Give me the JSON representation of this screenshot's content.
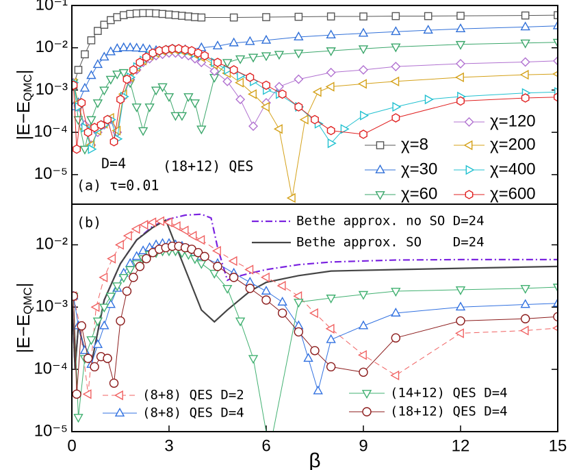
{
  "chart_data": [
    {
      "type": "line",
      "ylog": true,
      "xlim": [
        0,
        15
      ],
      "ylim": [
        2e-06,
        0.1
      ],
      "yticks": [
        {
          "value": 1e-05,
          "label": "10⁻⁵"
        },
        {
          "value": 0.0001,
          "label": "10⁻⁴"
        },
        {
          "value": 0.001,
          "label": "10⁻³"
        },
        {
          "value": 0.01,
          "label": "10⁻²"
        },
        {
          "value": 0.1,
          "label": "10⁻¹"
        }
      ],
      "ylabel": [
        "|E−E",
        "QMC",
        "|"
      ],
      "annotations": [
        "D=4",
        "(18+12) QES",
        "(a) τ=0.01"
      ],
      "series": [
        {
          "name": "χ=8",
          "color": "#555555",
          "marker": "square",
          "dash": "solid",
          "x": [
            0.05,
            0.2,
            0.4,
            0.6,
            0.8,
            1.0,
            1.2,
            1.4,
            1.6,
            1.8,
            2.0,
            2.2,
            2.4,
            2.6,
            2.8,
            3.0,
            3.2,
            3.4,
            3.6,
            3.8,
            4.0,
            5,
            6,
            7,
            8,
            9,
            10,
            11,
            12,
            14,
            15
          ],
          "values": [
            0.0013,
            0.003,
            0.007,
            0.015,
            0.025,
            0.035,
            0.045,
            0.053,
            0.059,
            0.063,
            0.065,
            0.066,
            0.066,
            0.065,
            0.063,
            0.061,
            0.059,
            0.057,
            0.055,
            0.053,
            0.052,
            0.052,
            0.053,
            0.054,
            0.055,
            0.055,
            0.056,
            0.056,
            0.057,
            0.058,
            0.059
          ]
        },
        {
          "name": "χ=30",
          "color": "#2f6fd8",
          "marker": "triangle-up",
          "dash": "solid",
          "x": [
            0.05,
            0.2,
            0.4,
            0.6,
            0.8,
            1.0,
            1.2,
            1.4,
            1.6,
            1.8,
            2.0,
            2.2,
            2.4,
            2.6,
            3.0,
            3.5,
            4,
            4.5,
            5,
            5.5,
            6,
            7,
            8,
            9,
            10,
            11,
            12,
            14,
            15
          ],
          "values": [
            0.0004,
            0.0005,
            0.0011,
            0.0022,
            0.004,
            0.006,
            0.008,
            0.0095,
            0.01,
            0.01,
            0.0098,
            0.0095,
            0.009,
            0.0086,
            0.0085,
            0.009,
            0.01,
            0.011,
            0.013,
            0.014,
            0.015,
            0.018,
            0.02,
            0.022,
            0.024,
            0.026,
            0.028,
            0.031,
            0.033
          ]
        },
        {
          "name": "χ=60",
          "color": "#3aa66a",
          "marker": "triangle-down",
          "dash": "solid",
          "x": [
            0.05,
            0.2,
            0.4,
            0.6,
            0.8,
            1.0,
            1.2,
            1.4,
            1.6,
            1.8,
            2.0,
            2.2,
            2.4,
            2.6,
            2.8,
            3.0,
            3.2,
            3.4,
            3.6,
            3.8,
            4.0,
            4.4,
            4.8,
            5.2,
            5.6,
            6,
            6.4,
            7,
            8,
            9,
            10,
            12,
            14,
            15
          ],
          "values": [
            0.0015,
            0.0002,
            4e-05,
            0.0002,
            0.0005,
            0.001,
            0.0018,
            0.0024,
            0.0026,
            0.0015,
            0.0004,
            0.00011,
            0.0004,
            0.001,
            0.0012,
            0.0007,
            0.00025,
            0.00025,
            0.0007,
            0.0005,
            0.00012,
            0.002,
            0.0045,
            0.0055,
            0.006,
            0.0065,
            0.007,
            0.0075,
            0.0085,
            0.0095,
            0.0105,
            0.012,
            0.013,
            0.0135
          ]
        },
        {
          "name": "χ=120",
          "color": "#b070d0",
          "marker": "diamond",
          "dash": "solid",
          "x": [
            0.05,
            0.2,
            0.4,
            0.6,
            0.8,
            1.0,
            1.2,
            1.4,
            1.6,
            1.8,
            2.0,
            2.2,
            2.4,
            2.6,
            2.8,
            3.0,
            3.2,
            3.4,
            3.6,
            3.8,
            4.0,
            4.4,
            4.8,
            5.2,
            5.6,
            6.0,
            6.4,
            7.0,
            8.0,
            9.0,
            10,
            12,
            14,
            15
          ],
          "values": [
            0.0015,
            0.0004,
            0.00015,
            5e-05,
            0.0001,
            0.00015,
            0.0002,
            0.0001,
            0.0007,
            0.0018,
            0.003,
            0.0045,
            0.0055,
            0.0065,
            0.007,
            0.0075,
            0.0075,
            0.007,
            0.0065,
            0.0055,
            0.0045,
            0.0028,
            0.0016,
            0.0006,
            0.00014,
            0.0005,
            0.0012,
            0.0018,
            0.0026,
            0.003,
            0.0036,
            0.0042,
            0.0046,
            0.0049
          ]
        },
        {
          "name": "χ=200",
          "color": "#d4a017",
          "marker": "triangle-left",
          "dash": "solid",
          "x": [
            0.05,
            0.2,
            0.4,
            0.6,
            0.8,
            1.0,
            1.2,
            1.4,
            1.6,
            1.8,
            2.0,
            2.2,
            2.4,
            2.6,
            2.8,
            3.0,
            3.2,
            3.4,
            3.6,
            3.8,
            4.0,
            4.4,
            4.8,
            5.2,
            5.6,
            6.0,
            6.4,
            6.8,
            7.2,
            7.6,
            8,
            9,
            10,
            12,
            14,
            15
          ],
          "values": [
            0.0015,
            0.0005,
            0.00012,
            5e-05,
            0.00011,
            0.00016,
            0.00022,
            0.00011,
            0.0008,
            0.002,
            0.0035,
            0.005,
            0.0065,
            0.0075,
            0.0085,
            0.009,
            0.009,
            0.0085,
            0.008,
            0.007,
            0.006,
            0.004,
            0.0025,
            0.0015,
            0.0008,
            0.0004,
            0.00012,
            2.8e-06,
            0.0002,
            0.0009,
            0.0012,
            0.0014,
            0.0016,
            0.002,
            0.0023,
            0.0024
          ]
        },
        {
          "name": "χ=400",
          "color": "#20c0d0",
          "marker": "triangle-right",
          "dash": "solid",
          "x": [
            0.05,
            0.2,
            0.4,
            0.6,
            0.8,
            1.0,
            1.2,
            1.4,
            1.6,
            1.8,
            2.0,
            2.2,
            2.4,
            2.6,
            2.8,
            3.0,
            3.2,
            3.4,
            3.6,
            3.8,
            4.0,
            4.4,
            4.8,
            5.2,
            5.6,
            6.0,
            6.4,
            7.0,
            7.6,
            8.0,
            8.4,
            9,
            10,
            11,
            12,
            14,
            15
          ],
          "values": [
            0.0015,
            0.0004,
            0.00013,
            4e-05,
            0.00012,
            0.00015,
            0.0002,
            7e-05,
            0.0007,
            0.002,
            0.0035,
            0.005,
            0.0065,
            0.0075,
            0.0085,
            0.009,
            0.0095,
            0.009,
            0.0085,
            0.0075,
            0.0065,
            0.0045,
            0.003,
            0.0022,
            0.0016,
            0.001,
            0.0008,
            0.0004,
            0.00016,
            5.5e-05,
            0.00012,
            0.00025,
            0.0004,
            0.0006,
            0.0007,
            0.00085,
            0.0009
          ]
        },
        {
          "name": "χ=600",
          "color": "#e02020",
          "marker": "hexagon",
          "dash": "solid",
          "x": [
            0.05,
            0.15,
            0.3,
            0.5,
            0.7,
            0.9,
            1.1,
            1.3,
            1.5,
            1.7,
            1.9,
            2.1,
            2.3,
            2.5,
            2.7,
            2.9,
            3.1,
            3.3,
            3.5,
            3.7,
            3.9,
            4.1,
            4.5,
            5,
            5.5,
            6,
            6.5,
            7,
            7.5,
            8,
            9,
            10,
            12,
            14,
            15
          ],
          "values": [
            0.0013,
            4e-05,
            0.0005,
            0.0001,
            0.00013,
            0.00015,
            0.0002,
            6e-05,
            0.0006,
            0.0018,
            0.003,
            0.0045,
            0.006,
            0.0075,
            0.0085,
            0.009,
            0.0095,
            0.0095,
            0.009,
            0.0085,
            0.0075,
            0.0065,
            0.0045,
            0.003,
            0.002,
            0.0013,
            0.0008,
            0.0004,
            0.0002,
            0.00011,
            9e-05,
            0.00022,
            0.00055,
            0.00065,
            0.00068
          ]
        }
      ]
    },
    {
      "type": "line",
      "ylog": true,
      "xlim": [
        0,
        15
      ],
      "ylim": [
        1e-05,
        0.045
      ],
      "xticks": [
        0,
        3,
        6,
        9,
        12,
        15
      ],
      "xlabel": "β",
      "yticks": [
        {
          "value": 1e-05,
          "label": "10⁻⁵"
        },
        {
          "value": 0.0001,
          "label": "10⁻⁴"
        },
        {
          "value": 0.001,
          "label": "10⁻³"
        },
        {
          "value": 0.01,
          "label": "10⁻²"
        }
      ],
      "ylabel": [
        "|E−E",
        "QMC",
        "|"
      ],
      "annotations": [
        "(b)"
      ],
      "series": [
        {
          "name": "Bethe approx. no SO D=24",
          "color": "#7a22e0",
          "marker": "none",
          "dash": "dashdot",
          "x": [
            0,
            0.1,
            0.2,
            0.4,
            0.6,
            0.8,
            1,
            1.5,
            2,
            2.5,
            3,
            3.5,
            4,
            4.3,
            4.5,
            4.8,
            5,
            5.5,
            6,
            7,
            8,
            10,
            12,
            15
          ],
          "values": [
            0.0015,
            0.0001,
            0.0005,
            0.0002,
            0.00012,
            0.0004,
            0.0013,
            0.005,
            0.012,
            0.02,
            0.026,
            0.03,
            0.031,
            0.027,
            0.009,
            0.0027,
            0.003,
            0.0035,
            0.004,
            0.0048,
            0.0053,
            0.0057,
            0.0058,
            0.0058
          ]
        },
        {
          "name": "Bethe approx. SO    D=24",
          "color": "#444444",
          "marker": "none",
          "dash": "solid",
          "x": [
            0,
            0.1,
            0.2,
            0.4,
            0.6,
            0.8,
            1,
            1.5,
            2,
            2.5,
            2.9,
            3.2,
            3.6,
            4,
            4.4,
            4.8,
            5.5,
            6,
            7,
            8,
            10,
            12,
            15
          ],
          "values": [
            0.0015,
            0.0001,
            0.0005,
            0.0002,
            0.00012,
            0.0004,
            0.0013,
            0.005,
            0.012,
            0.019,
            0.025,
            0.01,
            0.003,
            0.0009,
            0.00058,
            0.0009,
            0.0018,
            0.0025,
            0.0032,
            0.0038,
            0.004,
            0.0042,
            0.0045
          ]
        },
        {
          "name": "(8+8) QES D=2",
          "color": "#f06060",
          "marker": "triangle-left",
          "dash": "dashed",
          "x": [
            0.05,
            0.25,
            0.5,
            0.75,
            1,
            1.25,
            1.5,
            1.75,
            2,
            2.25,
            2.5,
            2.75,
            3,
            3.25,
            3.5,
            3.75,
            4,
            4.5,
            5,
            5.5,
            6,
            6.5,
            7,
            7.5,
            8,
            9,
            10,
            12,
            14,
            15
          ],
          "values": [
            0.0015,
            0.0005,
            4e-05,
            0.001,
            0.003,
            0.006,
            0.01,
            0.014,
            0.018,
            0.021,
            0.023,
            0.024,
            0.023,
            0.02,
            0.017,
            0.014,
            0.012,
            0.008,
            0.0055,
            0.004,
            0.003,
            0.0022,
            0.0015,
            0.0008,
            0.00045,
            0.00017,
            8e-05,
            0.00038,
            0.00042,
            0.00046
          ]
        },
        {
          "name": "(8+8) QES D=4",
          "color": "#3070e0",
          "marker": "triangle-up",
          "dash": "solid",
          "x": [
            0.05,
            0.2,
            0.4,
            0.6,
            0.8,
            1,
            1.2,
            1.4,
            1.6,
            1.8,
            2,
            2.2,
            2.4,
            2.6,
            2.8,
            3,
            3.2,
            3.4,
            3.6,
            3.8,
            4,
            4.5,
            5,
            5.5,
            6,
            6.5,
            7,
            7.3,
            7.6,
            8,
            9,
            10,
            12,
            14,
            15
          ],
          "values": [
            0.0015,
            0.0005,
            0.0002,
            0.00012,
            0.00025,
            0.0005,
            0.0011,
            0.002,
            0.0035,
            0.005,
            0.0065,
            0.008,
            0.009,
            0.01,
            0.0105,
            0.0105,
            0.01,
            0.0095,
            0.0085,
            0.0075,
            0.0065,
            0.005,
            0.0035,
            0.0025,
            0.0018,
            0.0012,
            0.0005,
            0.00015,
            4.5e-05,
            0.0003,
            0.0005,
            0.0008,
            0.001,
            0.0011,
            0.00115
          ]
        },
        {
          "name": "(14+12) QES D=4",
          "color": "#40b070",
          "marker": "triangle-down",
          "dash": "solid",
          "x": [
            0.05,
            0.2,
            0.4,
            0.6,
            0.8,
            1,
            1.2,
            1.4,
            1.6,
            1.8,
            2,
            2.2,
            2.4,
            2.6,
            2.8,
            3,
            3.2,
            3.4,
            3.6,
            3.8,
            4,
            4.4,
            4.8,
            5.2,
            5.6,
            6.1,
            7,
            8,
            9,
            10,
            12,
            14,
            15
          ],
          "values": [
            0.0015,
            1.7e-05,
            0.00015,
            0.0003,
            0.0006,
            0.001,
            0.0015,
            0.0022,
            0.003,
            0.004,
            0.005,
            0.006,
            0.007,
            0.0075,
            0.008,
            0.008,
            0.008,
            0.0075,
            0.007,
            0.006,
            0.005,
            0.0035,
            0.002,
            0.0006,
            0.00015,
            5e-06,
            0.0012,
            0.0014,
            0.0016,
            0.0018,
            0.0019,
            0.002,
            0.0021
          ]
        },
        {
          "name": "(18+12) QES D=4",
          "color": "#8b1a1a",
          "marker": "circle",
          "dash": "solid",
          "x": [
            0.05,
            0.15,
            0.3,
            0.5,
            0.7,
            0.9,
            1.1,
            1.3,
            1.5,
            1.7,
            1.9,
            2.1,
            2.3,
            2.5,
            2.7,
            2.9,
            3.1,
            3.3,
            3.5,
            3.7,
            3.9,
            4.1,
            4.5,
            5,
            5.5,
            6,
            6.5,
            7,
            7.5,
            8,
            9,
            10,
            12,
            14,
            15
          ],
          "values": [
            0.0015,
            4e-05,
            0.0005,
            0.00015,
            0.00011,
            0.00016,
            0.00015,
            6e-05,
            0.0006,
            0.0018,
            0.003,
            0.0045,
            0.006,
            0.0075,
            0.0085,
            0.009,
            0.0095,
            0.0095,
            0.009,
            0.0085,
            0.0075,
            0.0065,
            0.0045,
            0.003,
            0.002,
            0.0013,
            0.0008,
            0.0004,
            0.0002,
            0.00011,
            9e-05,
            0.00032,
            0.0006,
            0.00065,
            0.0007
          ]
        }
      ]
    }
  ]
}
